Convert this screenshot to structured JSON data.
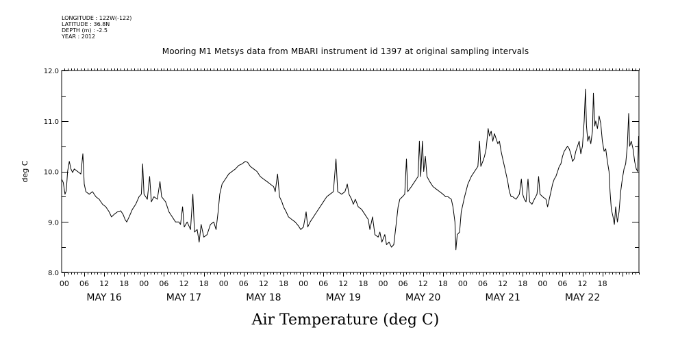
{
  "header": {
    "longitude": "LONGITUDE : 122W(-122)",
    "latitude": "LATITUDE : 36.8N",
    "depth": "DEPTH (m) : -2.5",
    "year": "YEAR : 2012"
  },
  "chart_data": {
    "type": "line",
    "title": "Mooring M1 Metsys data from MBARI instrument id 1397 at original sampling intervals",
    "xlabel": "Air Temperature (deg C)",
    "ylabel": "deg C",
    "ylim": [
      8.0,
      12.0
    ],
    "y_ticks": [
      "8.0",
      "9.0",
      "10.0",
      "11.0",
      "12.0"
    ],
    "x_unit": "hours since MAY 16 00",
    "xlim": [
      -0.8,
      173
    ],
    "hour_ticks": [
      "00",
      "06",
      "12",
      "18",
      "00",
      "06",
      "12",
      "18",
      "00",
      "06",
      "12",
      "18",
      "00",
      "06",
      "12",
      "18",
      "00",
      "06",
      "12",
      "18",
      "00",
      "06",
      "12",
      "18",
      "00",
      "06",
      "12",
      "18"
    ],
    "day_labels": [
      "MAY 16",
      "MAY 17",
      "MAY 18",
      "MAY 19",
      "MAY 20",
      "MAY 21",
      "MAY 22"
    ],
    "grid": false,
    "series": [
      {
        "color": "#000000",
        "points": [
          [
            -0.8,
            9.85
          ],
          [
            -0.3,
            9.78
          ],
          [
            0.2,
            9.55
          ],
          [
            0.6,
            9.62
          ],
          [
            1.0,
            10.0
          ],
          [
            1.5,
            10.2
          ],
          [
            2.0,
            10.05
          ],
          [
            2.5,
            9.98
          ],
          [
            3.0,
            10.05
          ],
          [
            4.0,
            10.0
          ],
          [
            5.0,
            9.95
          ],
          [
            5.6,
            10.35
          ],
          [
            6.0,
            9.75
          ],
          [
            6.5,
            9.6
          ],
          [
            7.5,
            9.55
          ],
          [
            8.5,
            9.6
          ],
          [
            9.5,
            9.5
          ],
          [
            10.5,
            9.45
          ],
          [
            11.5,
            9.35
          ],
          [
            12.5,
            9.3
          ],
          [
            13.5,
            9.2
          ],
          [
            14.2,
            9.1
          ],
          [
            15.0,
            9.15
          ],
          [
            16.0,
            9.2
          ],
          [
            17.0,
            9.22
          ],
          [
            17.7,
            9.15
          ],
          [
            18.3,
            9.05
          ],
          [
            18.8,
            9.0
          ],
          [
            19.5,
            9.1
          ],
          [
            20.5,
            9.25
          ],
          [
            21.5,
            9.35
          ],
          [
            22.5,
            9.5
          ],
          [
            23.2,
            9.55
          ],
          [
            23.6,
            10.15
          ],
          [
            24.0,
            9.55
          ],
          [
            25.0,
            9.45
          ],
          [
            25.7,
            9.9
          ],
          [
            26.2,
            9.4
          ],
          [
            27.0,
            9.5
          ],
          [
            28.0,
            9.45
          ],
          [
            28.8,
            9.8
          ],
          [
            29.3,
            9.5
          ],
          [
            30.5,
            9.4
          ],
          [
            31.5,
            9.2
          ],
          [
            32.5,
            9.1
          ],
          [
            33.5,
            9.0
          ],
          [
            34.5,
            9.0
          ],
          [
            35.0,
            8.95
          ],
          [
            35.6,
            9.3
          ],
          [
            36.1,
            8.9
          ],
          [
            37.0,
            9.0
          ],
          [
            38.0,
            8.85
          ],
          [
            38.7,
            9.55
          ],
          [
            39.2,
            8.8
          ],
          [
            40.0,
            8.85
          ],
          [
            40.6,
            8.6
          ],
          [
            41.2,
            8.95
          ],
          [
            42.0,
            8.7
          ],
          [
            43.0,
            8.75
          ],
          [
            44.0,
            8.95
          ],
          [
            45.0,
            9.0
          ],
          [
            45.7,
            8.85
          ],
          [
            46.3,
            9.2
          ],
          [
            46.8,
            9.55
          ],
          [
            47.5,
            9.75
          ],
          [
            48.5,
            9.85
          ],
          [
            49.5,
            9.95
          ],
          [
            50.5,
            10.0
          ],
          [
            51.5,
            10.05
          ],
          [
            52.5,
            10.12
          ],
          [
            53.5,
            10.15
          ],
          [
            54.5,
            10.2
          ],
          [
            55.2,
            10.18
          ],
          [
            56.0,
            10.1
          ],
          [
            57.0,
            10.05
          ],
          [
            58.0,
            10.0
          ],
          [
            59.0,
            9.9
          ],
          [
            60.0,
            9.85
          ],
          [
            61.0,
            9.8
          ],
          [
            62.0,
            9.75
          ],
          [
            63.0,
            9.7
          ],
          [
            63.5,
            9.6
          ],
          [
            64.2,
            9.95
          ],
          [
            64.8,
            9.5
          ],
          [
            65.5,
            9.4
          ],
          [
            66.0,
            9.3
          ],
          [
            66.8,
            9.2
          ],
          [
            67.5,
            9.1
          ],
          [
            68.5,
            9.05
          ],
          [
            69.5,
            9.0
          ],
          [
            70.5,
            8.92
          ],
          [
            71.2,
            8.85
          ],
          [
            72.0,
            8.9
          ],
          [
            72.8,
            9.2
          ],
          [
            73.3,
            8.9
          ],
          [
            74.0,
            9.0
          ],
          [
            75.0,
            9.1
          ],
          [
            76.0,
            9.2
          ],
          [
            77.0,
            9.3
          ],
          [
            78.0,
            9.4
          ],
          [
            79.0,
            9.5
          ],
          [
            80.0,
            9.55
          ],
          [
            81.0,
            9.6
          ],
          [
            81.8,
            10.25
          ],
          [
            82.3,
            9.6
          ],
          [
            83.5,
            9.55
          ],
          [
            84.5,
            9.6
          ],
          [
            85.2,
            9.75
          ],
          [
            85.7,
            9.55
          ],
          [
            86.5,
            9.45
          ],
          [
            87.0,
            9.35
          ],
          [
            87.6,
            9.45
          ],
          [
            88.5,
            9.3
          ],
          [
            89.5,
            9.25
          ],
          [
            90.5,
            9.15
          ],
          [
            91.5,
            9.05
          ],
          [
            92.0,
            8.85
          ],
          [
            92.8,
            9.1
          ],
          [
            93.5,
            8.75
          ],
          [
            94.5,
            8.7
          ],
          [
            95.0,
            8.8
          ],
          [
            95.6,
            8.6
          ],
          [
            96.5,
            8.75
          ],
          [
            97.0,
            8.55
          ],
          [
            97.8,
            8.6
          ],
          [
            98.5,
            8.5
          ],
          [
            99.2,
            8.55
          ],
          [
            99.8,
            8.9
          ],
          [
            100.5,
            9.3
          ],
          [
            101.0,
            9.45
          ],
          [
            101.8,
            9.5
          ],
          [
            102.5,
            9.55
          ],
          [
            103.0,
            10.25
          ],
          [
            103.4,
            9.6
          ],
          [
            104.5,
            9.7
          ],
          [
            105.5,
            9.8
          ],
          [
            106.0,
            9.85
          ],
          [
            106.5,
            9.9
          ],
          [
            106.9,
            10.6
          ],
          [
            107.3,
            9.9
          ],
          [
            107.8,
            10.6
          ],
          [
            108.2,
            10.0
          ],
          [
            108.7,
            10.3
          ],
          [
            109.2,
            9.9
          ],
          [
            110.0,
            9.8
          ],
          [
            111.0,
            9.7
          ],
          [
            112.0,
            9.65
          ],
          [
            113.0,
            9.6
          ],
          [
            114.0,
            9.55
          ],
          [
            114.8,
            9.5
          ],
          [
            115.5,
            9.5
          ],
          [
            116.5,
            9.45
          ],
          [
            117.0,
            9.3
          ],
          [
            117.6,
            9.0
          ],
          [
            117.9,
            8.45
          ],
          [
            118.3,
            8.75
          ],
          [
            119.0,
            8.8
          ],
          [
            119.5,
            9.2
          ],
          [
            120.5,
            9.5
          ],
          [
            121.5,
            9.75
          ],
          [
            122.5,
            9.9
          ],
          [
            123.5,
            10.0
          ],
          [
            124.5,
            10.1
          ],
          [
            125.0,
            10.6
          ],
          [
            125.4,
            10.1
          ],
          [
            126.0,
            10.2
          ],
          [
            126.5,
            10.3
          ],
          [
            127.0,
            10.45
          ],
          [
            127.6,
            10.85
          ],
          [
            128.0,
            10.7
          ],
          [
            128.5,
            10.8
          ],
          [
            129.0,
            10.6
          ],
          [
            129.5,
            10.75
          ],
          [
            130.0,
            10.65
          ],
          [
            130.5,
            10.55
          ],
          [
            131.0,
            10.6
          ],
          [
            131.5,
            10.4
          ],
          [
            132.0,
            10.25
          ],
          [
            132.5,
            10.1
          ],
          [
            133.0,
            9.95
          ],
          [
            133.5,
            9.8
          ],
          [
            134.0,
            9.6
          ],
          [
            134.5,
            9.5
          ],
          [
            135.0,
            9.5
          ],
          [
            136.0,
            9.45
          ],
          [
            137.0,
            9.55
          ],
          [
            137.6,
            9.85
          ],
          [
            138.0,
            9.55
          ],
          [
            138.5,
            9.45
          ],
          [
            139.0,
            9.4
          ],
          [
            139.6,
            9.85
          ],
          [
            140.1,
            9.4
          ],
          [
            140.8,
            9.35
          ],
          [
            141.5,
            9.45
          ],
          [
            142.3,
            9.55
          ],
          [
            142.8,
            9.9
          ],
          [
            143.2,
            9.55
          ],
          [
            144.0,
            9.5
          ],
          [
            145.0,
            9.45
          ],
          [
            145.5,
            9.3
          ],
          [
            146.0,
            9.45
          ],
          [
            146.5,
            9.6
          ],
          [
            147.0,
            9.75
          ],
          [
            147.5,
            9.85
          ],
          [
            148.0,
            9.9
          ],
          [
            148.5,
            10.0
          ],
          [
            149.0,
            10.1
          ],
          [
            149.5,
            10.15
          ],
          [
            150.0,
            10.3
          ],
          [
            150.5,
            10.4
          ],
          [
            151.0,
            10.45
          ],
          [
            151.5,
            10.5
          ],
          [
            152.0,
            10.45
          ],
          [
            152.5,
            10.35
          ],
          [
            153.0,
            10.2
          ],
          [
            153.5,
            10.25
          ],
          [
            154.0,
            10.4
          ],
          [
            154.5,
            10.5
          ],
          [
            155.0,
            10.6
          ],
          [
            155.5,
            10.35
          ],
          [
            156.0,
            10.5
          ],
          [
            156.5,
            11.0
          ],
          [
            156.9,
            11.63
          ],
          [
            157.2,
            10.9
          ],
          [
            157.6,
            10.6
          ],
          [
            158.0,
            10.7
          ],
          [
            158.5,
            10.55
          ],
          [
            159.0,
            10.8
          ],
          [
            159.3,
            11.55
          ],
          [
            159.7,
            10.9
          ],
          [
            160.0,
            11.0
          ],
          [
            160.5,
            10.85
          ],
          [
            161.0,
            11.1
          ],
          [
            161.5,
            10.95
          ],
          [
            162.0,
            10.6
          ],
          [
            162.5,
            10.4
          ],
          [
            163.0,
            10.45
          ],
          [
            163.5,
            10.2
          ],
          [
            164.0,
            10.0
          ],
          [
            164.3,
            9.6
          ],
          [
            164.7,
            9.25
          ],
          [
            165.2,
            9.1
          ],
          [
            165.6,
            8.95
          ],
          [
            166.0,
            9.3
          ],
          [
            166.5,
            9.0
          ],
          [
            167.0,
            9.2
          ],
          [
            167.5,
            9.6
          ],
          [
            168.0,
            9.85
          ],
          [
            168.5,
            10.05
          ],
          [
            169.0,
            10.15
          ],
          [
            169.5,
            10.5
          ],
          [
            169.9,
            11.15
          ],
          [
            170.2,
            10.5
          ],
          [
            170.7,
            10.6
          ],
          [
            171.2,
            10.45
          ],
          [
            171.7,
            10.2
          ],
          [
            172.2,
            10.05
          ],
          [
            172.6,
            10.0
          ],
          [
            172.9,
            10.7
          ]
        ]
      }
    ]
  }
}
